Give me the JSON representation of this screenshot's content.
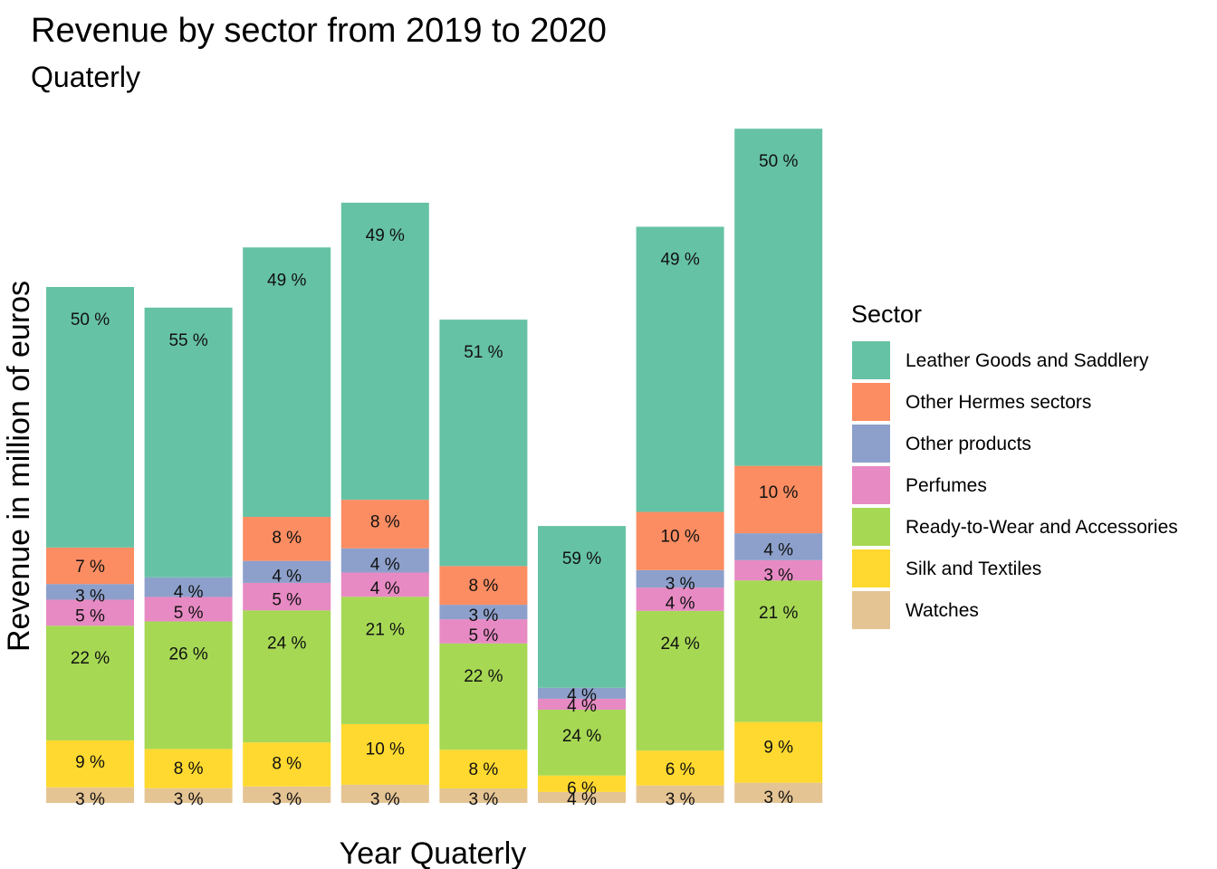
{
  "chart_data": {
    "type": "bar",
    "stacked": true,
    "title": "Revenue by sector from 2019 to 2020",
    "subtitle": "Quaterly",
    "xlabel": "Year Quaterly",
    "ylabel": "Revenue in million of euros",
    "categories": [
      "",
      "",
      "",
      "",
      "",
      "",
      "",
      ""
    ],
    "totals": [
      1500,
      1440,
      1615,
      1745,
      1405,
      805,
      1675,
      1960
    ],
    "legend_title": "Sector",
    "legend_position": "right",
    "grid": false,
    "series": [
      {
        "name": "Watches",
        "color": "#E5C494",
        "share": [
          3,
          3,
          3,
          3,
          3,
          4,
          3,
          3
        ],
        "labels": [
          "3 %",
          "3 %",
          "3 %",
          "3 %",
          "3 %",
          "4 %",
          "3 %",
          "3 %"
        ]
      },
      {
        "name": "Silk and Textiles",
        "color": "#FFD92F",
        "share": [
          9,
          8,
          8,
          10,
          8,
          6,
          6,
          9
        ],
        "labels": [
          "9 %",
          "8 %",
          "8 %",
          "10 %",
          "8 %",
          "6 %",
          "6 %",
          "9 %"
        ]
      },
      {
        "name": "Ready-to-Wear and Accessories",
        "color": "#A6D854",
        "share": [
          22,
          26,
          24,
          21,
          22,
          24,
          24,
          21
        ],
        "labels": [
          "22 %",
          "26 %",
          "24 %",
          "21 %",
          "22 %",
          "24 %",
          "24 %",
          "21 %"
        ]
      },
      {
        "name": "Perfumes",
        "color": "#E78AC3",
        "share": [
          5,
          5,
          5,
          4,
          5,
          4,
          4,
          3
        ],
        "labels": [
          "5 %",
          "5 %",
          "5 %",
          "4 %",
          "5 %",
          "4 %",
          "4 %",
          "3 %"
        ]
      },
      {
        "name": "Other products",
        "color": "#8DA0CB",
        "share": [
          3,
          4,
          4,
          4,
          3,
          4,
          3,
          4
        ],
        "labels": [
          "3 %",
          "4 %",
          "4 %",
          "4 %",
          "3 %",
          "4 %",
          "3 %",
          "4 %"
        ]
      },
      {
        "name": "Other Hermes sectors",
        "color": "#FC8D62",
        "share": [
          7,
          0,
          8,
          8,
          8,
          0,
          10,
          10
        ],
        "labels": [
          "7 %",
          "",
          "8 %",
          "8 %",
          "8 %",
          "",
          "10 %",
          "10 %"
        ]
      },
      {
        "name": "Leather Goods and Saddlery",
        "color": "#66C2A5",
        "share": [
          50,
          55,
          49,
          49,
          51,
          59,
          49,
          50
        ],
        "labels": [
          "50 %",
          "55 %",
          "49 %",
          "49 %",
          "51 %",
          "59 %",
          "49 %",
          "50 %"
        ]
      }
    ],
    "legend_order": [
      "Leather Goods and Saddlery",
      "Other Hermes sectors",
      "Other products",
      "Perfumes",
      "Ready-to-Wear and Accessories",
      "Silk and Textiles",
      "Watches"
    ]
  }
}
